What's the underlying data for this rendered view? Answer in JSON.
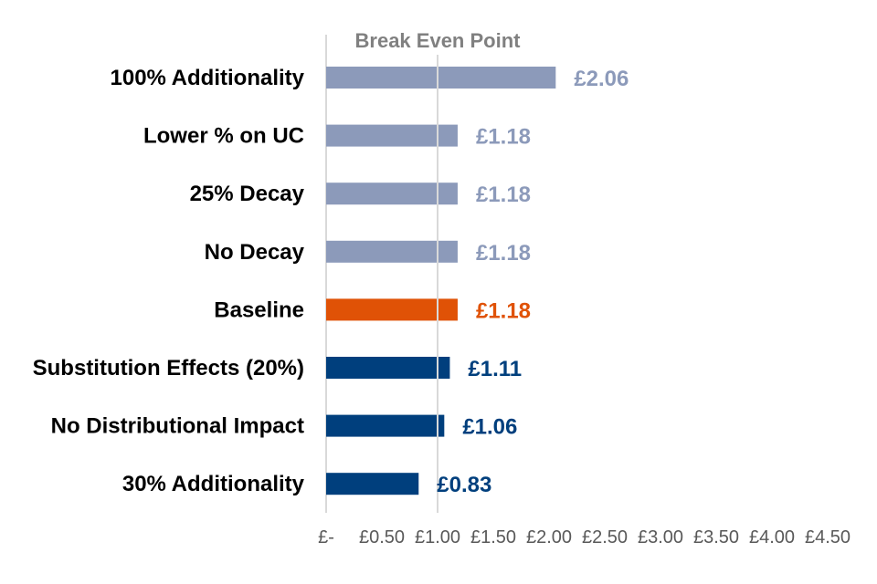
{
  "chart_data": {
    "type": "bar",
    "orientation": "horizontal",
    "title": "",
    "xlabel": "",
    "ylabel": "",
    "xlim": [
      0,
      4.5
    ],
    "x_ticks": [
      {
        "value": 0,
        "label": "£-"
      },
      {
        "value": 0.5,
        "label": "£0.50"
      },
      {
        "value": 1.0,
        "label": "£1.00"
      },
      {
        "value": 1.5,
        "label": "£1.50"
      },
      {
        "value": 2.0,
        "label": "£2.00"
      },
      {
        "value": 2.5,
        "label": "£2.50"
      },
      {
        "value": 3.0,
        "label": "£3.00"
      },
      {
        "value": 3.5,
        "label": "£3.50"
      },
      {
        "value": 4.0,
        "label": "£4.00"
      },
      {
        "value": 4.5,
        "label": "£4.50"
      }
    ],
    "grid": false,
    "reference_line": {
      "value": 1.0,
      "label": "Break Even Point",
      "color": "#d9d9d9",
      "label_color": "#808080"
    },
    "bars": [
      {
        "category": "100% Additionality",
        "value": 2.06,
        "label": "£2.06",
        "color": "#8c9aba"
      },
      {
        "category": "Lower % on UC",
        "value": 1.18,
        "label": "£1.18",
        "color": "#8c9aba"
      },
      {
        "category": "25% Decay",
        "value": 1.18,
        "label": "£1.18",
        "color": "#8c9aba"
      },
      {
        "category": "No Decay",
        "value": 1.18,
        "label": "£1.18",
        "color": "#8c9aba"
      },
      {
        "category": "Baseline",
        "value": 1.18,
        "label": "£1.18",
        "color": "#e05206"
      },
      {
        "category": "Substitution Effects (20%)",
        "value": 1.11,
        "label": "£1.11",
        "color": "#003f7d"
      },
      {
        "category": "No Distributional Impact",
        "value": 1.06,
        "label": "£1.06",
        "color": "#003f7d"
      },
      {
        "category": "30% Additionality",
        "value": 0.83,
        "label": "£0.83",
        "color": "#003f7d"
      }
    ]
  }
}
